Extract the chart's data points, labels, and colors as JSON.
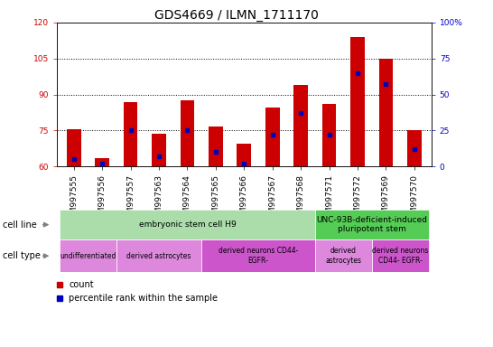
{
  "title": "GDS4669 / ILMN_1711170",
  "samples": [
    "GSM997555",
    "GSM997556",
    "GSM997557",
    "GSM997563",
    "GSM997564",
    "GSM997565",
    "GSM997566",
    "GSM997567",
    "GSM997568",
    "GSM997571",
    "GSM997572",
    "GSM997569",
    "GSM997570"
  ],
  "count_values": [
    75.5,
    63.5,
    87.0,
    73.5,
    87.5,
    76.5,
    69.5,
    84.5,
    94.0,
    86.0,
    114.0,
    105.0,
    75.0
  ],
  "percentile_values": [
    5.0,
    2.0,
    25.0,
    7.0,
    25.0,
    10.0,
    2.0,
    22.0,
    37.0,
    22.0,
    65.0,
    57.0,
    12.0
  ],
  "ylim_left": [
    60,
    120
  ],
  "ylim_right": [
    0,
    100
  ],
  "yticks_left": [
    60,
    75,
    90,
    105,
    120
  ],
  "yticks_right": [
    0,
    25,
    50,
    75,
    100
  ],
  "bar_color": "#cc0000",
  "dot_color": "#0000bb",
  "bar_width": 0.5,
  "cell_line_groups": [
    {
      "label": "embryonic stem cell H9",
      "start": 0,
      "end": 9,
      "color": "#aaddaa"
    },
    {
      "label": "UNC-93B-deficient-induced\npluripotent stem",
      "start": 9,
      "end": 13,
      "color": "#55cc55"
    }
  ],
  "cell_type_groups": [
    {
      "label": "undifferentiated",
      "start": 0,
      "end": 2,
      "color": "#dd88dd"
    },
    {
      "label": "derived astrocytes",
      "start": 2,
      "end": 5,
      "color": "#dd88dd"
    },
    {
      "label": "derived neurons CD44-\nEGFR-",
      "start": 5,
      "end": 9,
      "color": "#cc55cc"
    },
    {
      "label": "derived\nastrocytes",
      "start": 9,
      "end": 11,
      "color": "#dd88dd"
    },
    {
      "label": "derived neurons\nCD44- EGFR-",
      "start": 11,
      "end": 13,
      "color": "#cc55cc"
    }
  ],
  "left_axis_color": "#cc0000",
  "right_axis_color": "#0000cc",
  "title_fontsize": 10,
  "tick_fontsize": 6.5,
  "annotation_fontsize": 7,
  "grid_dotted_ticks": [
    75,
    90,
    105
  ]
}
